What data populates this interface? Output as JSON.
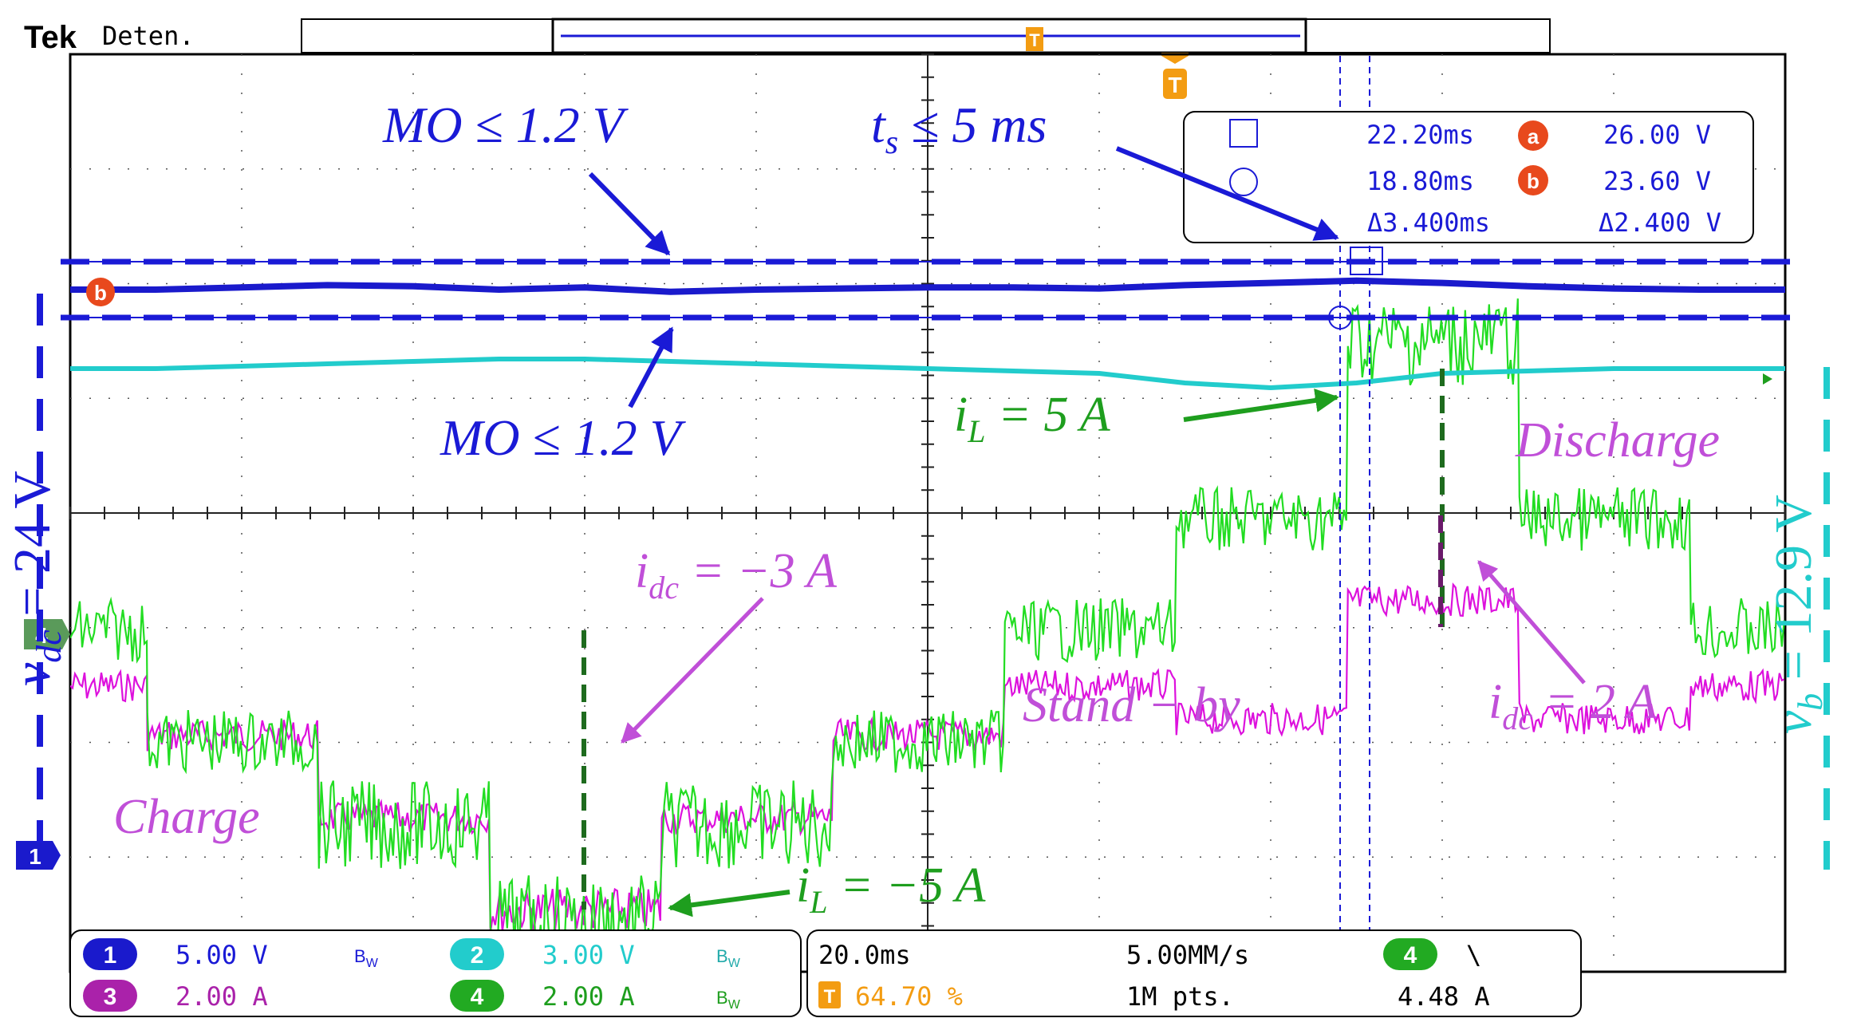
{
  "header": {
    "brand": "Tek",
    "status": "Deten.",
    "trigger_marker": "T"
  },
  "colors": {
    "ch1": "#1a1acc",
    "ch2": "#22cccc",
    "ch3": "#dd11dd",
    "ch4": "#22dd22",
    "annot_blue": "#1a1ad6",
    "annot_green": "#1e9e1e",
    "annot_purple": "#c04fd8",
    "trigger": "#f39c12",
    "cursor_red": "#e8491d"
  },
  "chart_data": {
    "type": "line",
    "x_label": "",
    "y_label": "",
    "grid": true,
    "divisions": {
      "x": 10,
      "y": 8
    },
    "x": [
      0,
      5,
      10,
      15,
      20,
      25,
      30,
      35,
      40,
      45,
      50,
      55,
      60,
      65,
      70,
      75,
      80,
      85,
      90,
      95,
      100
    ],
    "x_unit": "% of record",
    "series": [
      {
        "channel": "1",
        "name": "v_dc",
        "scale": "5.00 V",
        "values": [
          24,
          24,
          24.2,
          24.4,
          24.3,
          24,
          24.2,
          23.8,
          24,
          24.1,
          24.2,
          24.2,
          24.1,
          24.4,
          24.6,
          24.8,
          24.6,
          24.3,
          24.1,
          24,
          24
        ]
      },
      {
        "channel": "2",
        "name": "v_b",
        "scale": "3.00 V",
        "values": [
          12.9,
          12.9,
          12.95,
          13,
          13.05,
          13.1,
          13.1,
          13.05,
          13,
          12.95,
          12.9,
          12.85,
          12.8,
          12.6,
          12.5,
          12.6,
          12.8,
          12.85,
          12.9,
          12.9,
          12.9
        ]
      },
      {
        "channel": "3",
        "name": "i_dc",
        "scale": "2.00 A",
        "values": [
          0,
          -1,
          -1,
          -2,
          -2,
          -3,
          -3,
          -2,
          -2,
          -1,
          -1,
          0,
          0,
          1,
          1,
          2,
          2,
          2,
          1,
          1,
          0
        ]
      },
      {
        "channel": "4",
        "name": "i_L",
        "scale": "2.00 A",
        "values": [
          0,
          -2,
          -2,
          -3,
          -3,
          -5,
          -5,
          -3,
          -3,
          -2,
          -2,
          0,
          0,
          2,
          2,
          5,
          5,
          5,
          2,
          2,
          0
        ]
      }
    ],
    "segments": [
      {
        "start": 0,
        "end": 4.5,
        "i_L": 0,
        "i_dc": 0
      },
      {
        "start": 4.5,
        "end": 14.5,
        "i_L": -2,
        "i_dc": -0.75
      },
      {
        "start": 14.5,
        "end": 24.5,
        "i_L": -3.5,
        "i_dc": -2
      },
      {
        "start": 24.5,
        "end": 34.5,
        "i_L": -5.2,
        "i_dc": -3.4
      },
      {
        "start": 34.5,
        "end": 44.5,
        "i_L": -3.5,
        "i_dc": -2
      },
      {
        "start": 44.5,
        "end": 54.5,
        "i_L": -2,
        "i_dc": -0.75
      },
      {
        "start": 54.5,
        "end": 64.5,
        "i_L": 0,
        "i_dc": 0
      },
      {
        "start": 64.5,
        "end": 74.5,
        "i_L": 2,
        "i_dc": -0.5
      },
      {
        "start": 74.5,
        "end": 84.5,
        "i_L": 5.2,
        "i_dc": 1.3
      },
      {
        "start": 84.5,
        "end": 94.5,
        "i_L": 2,
        "i_dc": -0.5
      },
      {
        "start": 94.5,
        "end": 100,
        "i_L": 0,
        "i_dc": 0
      }
    ],
    "cursor_readout": {
      "t1": "22.20ms",
      "t2": "18.80ms",
      "dt": "Δ3.400ms",
      "va": "26.00 V",
      "vb": "23.60 V",
      "dv": "Δ2.400 V",
      "label_a": "a",
      "label_b": "b"
    }
  },
  "annotations": {
    "mo_top": "MO ≤ 1.2 V",
    "mo_bottom": "MO ≤ 1.2 V",
    "ts": "t",
    "ts_sub": "s",
    "ts_rest": " ≤ 5 ms",
    "il_pos": "i",
    "il_pos_sub": "L",
    "il_pos_rest": " = 5 A",
    "il_neg": "i",
    "il_neg_sub": "L",
    "il_neg_rest": " = −5 A",
    "idc_neg": "i",
    "idc_neg_sub": "dc",
    "idc_neg_rest": " = −3 A",
    "idc_pos": "i",
    "idc_pos_sub": "dc",
    "idc_pos_rest": " = 2 A",
    "charge": "Charge",
    "discharge": "Discharge",
    "standby": "Stand − by",
    "vdc_label": "v",
    "vdc_sub": "dc",
    "vdc_rest": " = 24 V",
    "vb_label": "v",
    "vb_sub": "b",
    "vb_rest": " = 12.9 V"
  },
  "channel_panel": {
    "ch1": {
      "num": "1",
      "scale": "5.00 V",
      "bw": "B",
      "bw_sub": "W"
    },
    "ch2": {
      "num": "2",
      "scale": "3.00 V",
      "bw": "B",
      "bw_sub": "W"
    },
    "ch3": {
      "num": "3",
      "scale": "2.00 A"
    },
    "ch4": {
      "num": "4",
      "scale": "2.00 A",
      "bw": "B",
      "bw_sub": "W"
    }
  },
  "timebase_panel": {
    "time_div": "20.0ms",
    "sample_rate": "5.00MM/s",
    "trigger_source": "4",
    "trigger_slope": "\\",
    "trigger_pos_icon": "T",
    "trigger_pos": "64.70 %",
    "record_length": "1M pts.",
    "trigger_level": "4.48 A"
  },
  "markers": {
    "ch1": "1",
    "ch4": "4",
    "cursor_b": "b"
  }
}
